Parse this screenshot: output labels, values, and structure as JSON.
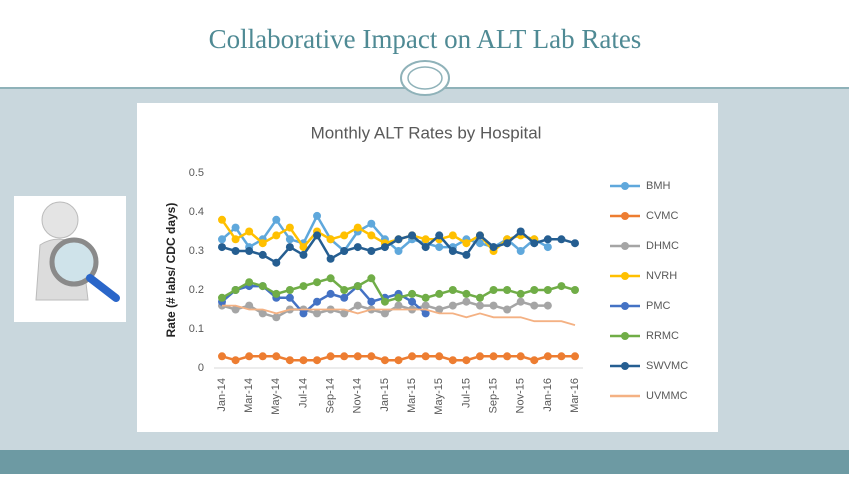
{
  "slide": {
    "title": "Collaborative Impact on ALT Lab Rates"
  },
  "chart_data": {
    "type": "line",
    "title": "Monthly ALT Rates by Hospital",
    "y_label": "Rate (# labs/ CDC days)",
    "categories": [
      "Jan-14",
      null,
      "Mar-14",
      null,
      "May-14",
      null,
      "Jul-14",
      null,
      "Sep-14",
      null,
      "Nov-14",
      null,
      "Jan-15",
      null,
      "Mar-15",
      null,
      "May-15",
      null,
      "Jul-15",
      null,
      "Sep-15",
      null,
      "Nov-15",
      null,
      "Jan-16",
      null,
      "Mar-16"
    ],
    "ylim": [
      0,
      0.5
    ],
    "yticks": [
      0,
      0.1,
      0.2,
      0.3,
      0.4,
      0.5
    ],
    "grid": false,
    "legend": "right",
    "series": [
      {
        "name": "BMH",
        "color": "#5fa8dc",
        "markers": true,
        "values": [
          0.33,
          0.36,
          0.31,
          0.33,
          0.38,
          0.33,
          0.32,
          0.39,
          0.33,
          0.3,
          0.35,
          0.37,
          0.33,
          0.3,
          0.33,
          0.32,
          0.31,
          0.31,
          0.33,
          0.32,
          0.31,
          0.33,
          0.3,
          0.33,
          0.31,
          null,
          null
        ]
      },
      {
        "name": "CVMC",
        "color": "#ed7d31",
        "markers": true,
        "values": [
          0.03,
          0.02,
          0.03,
          0.03,
          0.03,
          0.02,
          0.02,
          0.02,
          0.03,
          0.03,
          0.03,
          0.03,
          0.02,
          0.02,
          0.03,
          0.03,
          0.03,
          0.02,
          0.02,
          0.03,
          0.03,
          0.03,
          0.03,
          0.02,
          0.03,
          0.03,
          0.03
        ]
      },
      {
        "name": "DHMC",
        "color": "#a5a5a5",
        "markers": true,
        "values": [
          0.16,
          0.15,
          0.16,
          0.14,
          0.13,
          0.15,
          0.15,
          0.14,
          0.15,
          0.14,
          0.16,
          0.15,
          0.14,
          0.16,
          0.15,
          0.16,
          0.15,
          0.16,
          0.17,
          0.16,
          0.16,
          0.15,
          0.17,
          0.16,
          0.16,
          null,
          null
        ]
      },
      {
        "name": "NVRH",
        "color": "#ffc000",
        "markers": true,
        "values": [
          0.38,
          0.33,
          0.35,
          0.32,
          0.34,
          0.36,
          0.31,
          0.35,
          0.33,
          0.34,
          0.36,
          0.34,
          0.32,
          0.33,
          0.34,
          0.33,
          0.33,
          0.34,
          0.32,
          0.34,
          0.3,
          0.33,
          0.34,
          0.33,
          null,
          null,
          null
        ]
      },
      {
        "name": "PMC",
        "color": "#4472c4",
        "markers": true,
        "values": [
          0.17,
          0.2,
          0.21,
          0.21,
          0.18,
          0.18,
          0.14,
          0.17,
          0.19,
          0.18,
          0.21,
          0.17,
          0.18,
          0.19,
          0.17,
          0.14,
          null,
          null,
          null,
          null,
          null,
          null,
          null,
          null,
          null,
          null,
          null
        ]
      },
      {
        "name": "RRMC",
        "color": "#70ad47",
        "markers": true,
        "values": [
          0.18,
          0.2,
          0.22,
          0.21,
          0.19,
          0.2,
          0.21,
          0.22,
          0.23,
          0.2,
          0.21,
          0.23,
          0.17,
          0.18,
          0.19,
          0.18,
          0.19,
          0.2,
          0.19,
          0.18,
          0.2,
          0.2,
          0.19,
          0.2,
          0.2,
          0.21,
          0.2
        ]
      },
      {
        "name": "SWVMC",
        "color": "#255e91",
        "markers": true,
        "values": [
          0.31,
          0.3,
          0.3,
          0.29,
          0.27,
          0.31,
          0.29,
          0.34,
          0.28,
          0.3,
          0.31,
          0.3,
          0.31,
          0.33,
          0.34,
          0.31,
          0.34,
          0.3,
          0.29,
          0.34,
          0.31,
          0.32,
          0.35,
          0.32,
          0.33,
          0.33,
          0.32
        ]
      },
      {
        "name": "UVMMC",
        "color": "#f4b183",
        "markers": false,
        "values": [
          0.16,
          0.16,
          0.15,
          0.15,
          0.14,
          0.15,
          0.15,
          0.15,
          0.15,
          0.15,
          0.14,
          0.15,
          0.15,
          0.15,
          0.15,
          0.15,
          0.14,
          0.14,
          0.13,
          0.14,
          0.13,
          0.13,
          0.13,
          0.12,
          0.12,
          0.12,
          0.11
        ]
      }
    ]
  }
}
